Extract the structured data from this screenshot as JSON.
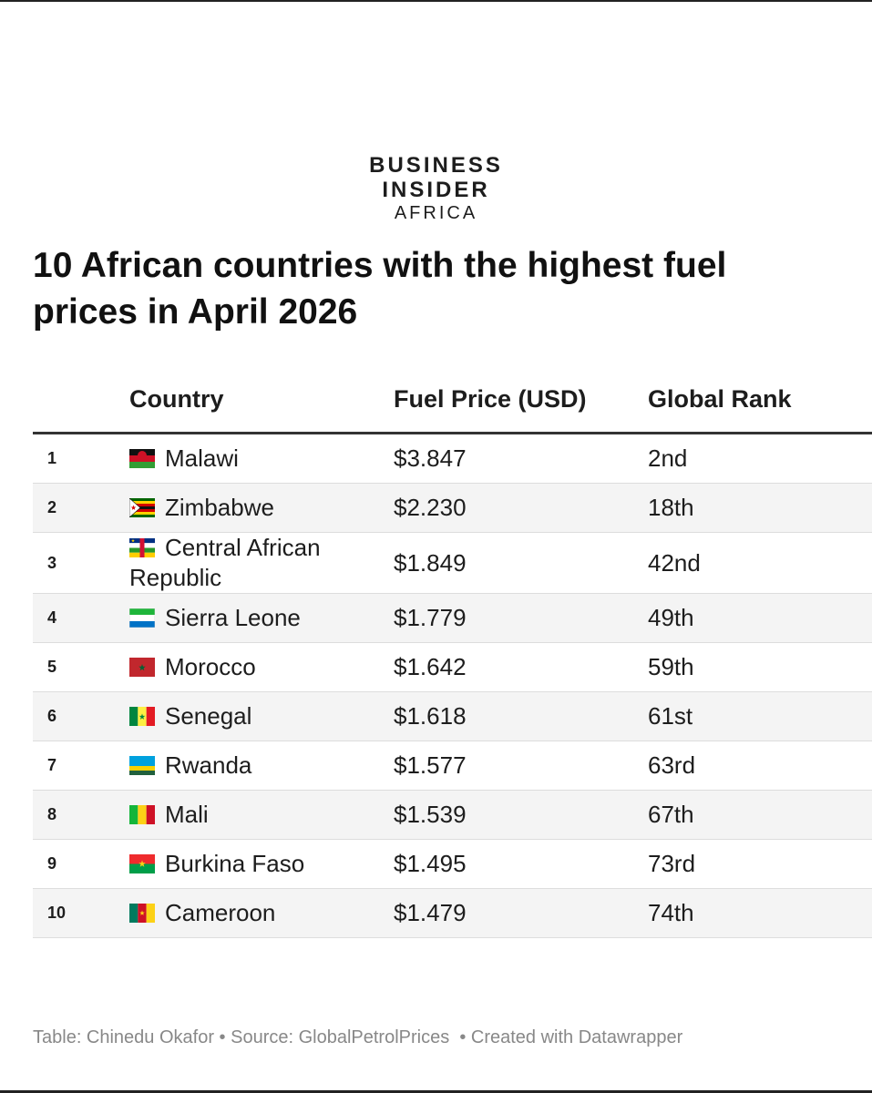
{
  "header": {
    "logo": [
      "BUSINESS",
      "INSIDER",
      "AFRICA"
    ],
    "title": "10 African countries with the highest fuel prices in April 2026"
  },
  "table": {
    "columns": [
      "Country",
      "Fuel Price (USD)",
      "Global Rank"
    ],
    "rows": [
      [
        1,
        "Malawi",
        "$3.847",
        "2nd"
      ],
      [
        2,
        "Zimbabwe",
        "$2.230",
        "18th"
      ],
      [
        3,
        "Central African Republic",
        "$1.849",
        "42nd"
      ],
      [
        4,
        "Sierra Leone",
        "$1.779",
        "49th"
      ],
      [
        5,
        "Morocco",
        "$1.642",
        "59th"
      ],
      [
        6,
        "Senegal",
        "$1.618",
        "61st"
      ],
      [
        7,
        "Rwanda",
        "$1.577",
        "63rd"
      ],
      [
        8,
        "Mali",
        "$1.539",
        "67th"
      ],
      [
        9,
        "Burkina Faso",
        "$1.495",
        "73rd"
      ],
      [
        10,
        "Cameroon",
        "$1.479",
        "74th"
      ]
    ]
  },
  "footer": "Table: Chinedu Okafor • Source: GlobalPetrolPrices  • Created with Datawrapper"
}
